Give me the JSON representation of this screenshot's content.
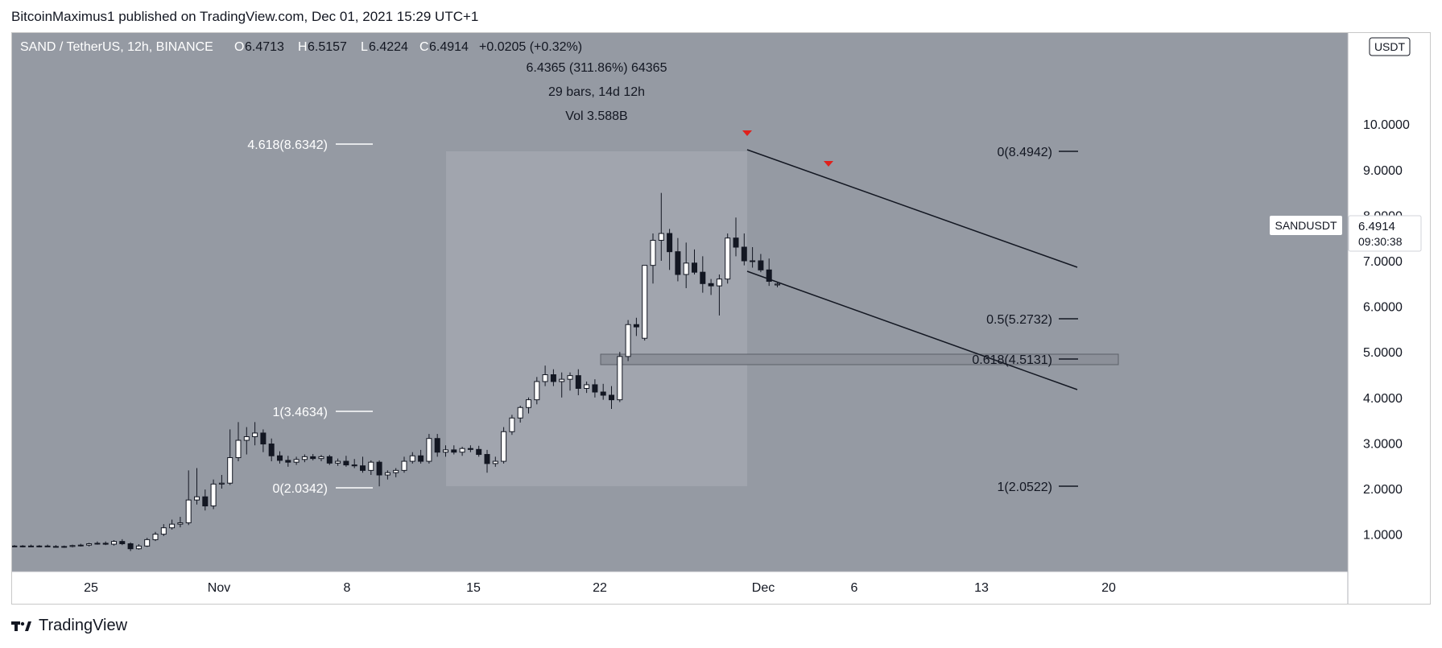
{
  "header": {
    "published_text": "BitcoinMaximus1 published on TradingView.com, Dec 01, 2021 15:29 UTC+1"
  },
  "footer": {
    "brand": "TradingView"
  },
  "legend": {
    "symbol": "SAND / TetherUS, 12h, BINANCE",
    "o_label": "O",
    "o_value": "6.4713",
    "h_label": "H",
    "h_value": "6.5157",
    "l_label": "L",
    "l_value": "6.4224",
    "c_label": "C",
    "c_value": "6.4914",
    "change": "+0.0205 (+0.32%)"
  },
  "measure": {
    "line1": "6.4365 (311.86%) 64365",
    "line2": "29 bars, 14d 12h",
    "line3": "Vol 3.588B"
  },
  "price_axis": {
    "currency": "USDT",
    "ticks": [
      "10.0000",
      "9.0000",
      "8.0000",
      "7.0000",
      "6.0000",
      "5.0000",
      "4.0000",
      "3.0000",
      "2.0000",
      "1.0000"
    ]
  },
  "time_axis": {
    "ticks": [
      "25",
      "Nov",
      "8",
      "15",
      "22",
      "Dec",
      "6",
      "13",
      "20"
    ]
  },
  "symbol_tag": {
    "name": "SANDUSDT",
    "price": "6.4914",
    "countdown": "09:30:38"
  },
  "fib_left": {
    "a": "4.618(8.6342)",
    "b": "1(3.4634)",
    "c": "0(2.0342)"
  },
  "fib_right": {
    "a": "0(8.4942)",
    "b": "0.5(5.2732)",
    "c": "0.618(4.5131)",
    "d": "1(2.0522)"
  },
  "colors": {
    "chart_bg": "#959aa3",
    "highlight_bg": "#a1a5ae",
    "marker": "#e0201b",
    "line": "#131722"
  },
  "chart_data": {
    "type": "candlestick",
    "title": "SAND / TetherUS, 12h, BINANCE",
    "ylabel": "USDT",
    "ylim": [
      0.2,
      10.5
    ],
    "x_ticks": [
      "25",
      "Nov",
      "8",
      "15",
      "22",
      "Dec",
      "6",
      "13",
      "20"
    ],
    "candles": [
      {
        "o": 0.74,
        "h": 0.76,
        "l": 0.72,
        "c": 0.73
      },
      {
        "o": 0.73,
        "h": 0.76,
        "l": 0.71,
        "c": 0.74
      },
      {
        "o": 0.74,
        "h": 0.77,
        "l": 0.72,
        "c": 0.73
      },
      {
        "o": 0.73,
        "h": 0.76,
        "l": 0.71,
        "c": 0.74
      },
      {
        "o": 0.74,
        "h": 0.77,
        "l": 0.72,
        "c": 0.73
      },
      {
        "o": 0.73,
        "h": 0.76,
        "l": 0.71,
        "c": 0.72
      },
      {
        "o": 0.72,
        "h": 0.75,
        "l": 0.7,
        "c": 0.73
      },
      {
        "o": 0.73,
        "h": 0.77,
        "l": 0.71,
        "c": 0.75
      },
      {
        "o": 0.75,
        "h": 0.79,
        "l": 0.73,
        "c": 0.76
      },
      {
        "o": 0.76,
        "h": 0.81,
        "l": 0.73,
        "c": 0.79
      },
      {
        "o": 0.79,
        "h": 0.84,
        "l": 0.77,
        "c": 0.8
      },
      {
        "o": 0.8,
        "h": 0.84,
        "l": 0.76,
        "c": 0.78
      },
      {
        "o": 0.78,
        "h": 0.87,
        "l": 0.75,
        "c": 0.84
      },
      {
        "o": 0.84,
        "h": 0.89,
        "l": 0.76,
        "c": 0.79
      },
      {
        "o": 0.79,
        "h": 0.82,
        "l": 0.63,
        "c": 0.68
      },
      {
        "o": 0.68,
        "h": 0.78,
        "l": 0.66,
        "c": 0.74
      },
      {
        "o": 0.74,
        "h": 0.92,
        "l": 0.72,
        "c": 0.88
      },
      {
        "o": 0.88,
        "h": 1.05,
        "l": 0.85,
        "c": 1.0
      },
      {
        "o": 1.0,
        "h": 1.22,
        "l": 0.96,
        "c": 1.14
      },
      {
        "o": 1.14,
        "h": 1.32,
        "l": 1.1,
        "c": 1.22
      },
      {
        "o": 1.22,
        "h": 1.38,
        "l": 1.15,
        "c": 1.25
      },
      {
        "o": 1.25,
        "h": 2.4,
        "l": 1.2,
        "c": 1.75
      },
      {
        "o": 1.75,
        "h": 2.45,
        "l": 1.65,
        "c": 1.82
      },
      {
        "o": 1.82,
        "h": 1.98,
        "l": 1.52,
        "c": 1.62
      },
      {
        "o": 1.62,
        "h": 2.2,
        "l": 1.55,
        "c": 2.1
      },
      {
        "o": 2.1,
        "h": 2.3,
        "l": 2.0,
        "c": 2.12
      },
      {
        "o": 2.12,
        "h": 3.3,
        "l": 2.08,
        "c": 2.68
      },
      {
        "o": 2.68,
        "h": 3.46,
        "l": 2.6,
        "c": 3.06
      },
      {
        "o": 3.06,
        "h": 3.35,
        "l": 2.75,
        "c": 3.14
      },
      {
        "o": 3.14,
        "h": 3.46,
        "l": 2.95,
        "c": 3.22
      },
      {
        "o": 3.22,
        "h": 3.3,
        "l": 2.8,
        "c": 2.98
      },
      {
        "o": 2.98,
        "h": 3.1,
        "l": 2.6,
        "c": 2.72
      },
      {
        "o": 2.72,
        "h": 2.82,
        "l": 2.55,
        "c": 2.62
      },
      {
        "o": 2.62,
        "h": 2.72,
        "l": 2.48,
        "c": 2.58
      },
      {
        "o": 2.58,
        "h": 2.7,
        "l": 2.52,
        "c": 2.64
      },
      {
        "o": 2.64,
        "h": 2.75,
        "l": 2.58,
        "c": 2.7
      },
      {
        "o": 2.7,
        "h": 2.76,
        "l": 2.62,
        "c": 2.66
      },
      {
        "o": 2.66,
        "h": 2.74,
        "l": 2.6,
        "c": 2.7
      },
      {
        "o": 2.7,
        "h": 2.74,
        "l": 2.52,
        "c": 2.56
      },
      {
        "o": 2.56,
        "h": 2.66,
        "l": 2.5,
        "c": 2.6
      },
      {
        "o": 2.6,
        "h": 2.72,
        "l": 2.48,
        "c": 2.52
      },
      {
        "o": 2.52,
        "h": 2.65,
        "l": 2.45,
        "c": 2.5
      },
      {
        "o": 2.5,
        "h": 2.7,
        "l": 2.35,
        "c": 2.4
      },
      {
        "o": 2.4,
        "h": 2.62,
        "l": 2.3,
        "c": 2.58
      },
      {
        "o": 2.58,
        "h": 2.62,
        "l": 2.05,
        "c": 2.3
      },
      {
        "o": 2.3,
        "h": 2.4,
        "l": 2.2,
        "c": 2.35
      },
      {
        "o": 2.35,
        "h": 2.45,
        "l": 2.25,
        "c": 2.4
      },
      {
        "o": 2.4,
        "h": 2.7,
        "l": 2.35,
        "c": 2.6
      },
      {
        "o": 2.6,
        "h": 2.8,
        "l": 2.55,
        "c": 2.72
      },
      {
        "o": 2.72,
        "h": 2.85,
        "l": 2.55,
        "c": 2.6
      },
      {
        "o": 2.6,
        "h": 3.2,
        "l": 2.55,
        "c": 3.1
      },
      {
        "o": 3.1,
        "h": 3.2,
        "l": 2.7,
        "c": 2.8
      },
      {
        "o": 2.8,
        "h": 2.95,
        "l": 2.7,
        "c": 2.85
      },
      {
        "o": 2.85,
        "h": 2.95,
        "l": 2.75,
        "c": 2.8
      },
      {
        "o": 2.8,
        "h": 2.92,
        "l": 2.72,
        "c": 2.88
      },
      {
        "o": 2.88,
        "h": 2.95,
        "l": 2.8,
        "c": 2.86
      },
      {
        "o": 2.86,
        "h": 2.94,
        "l": 2.7,
        "c": 2.75
      },
      {
        "o": 2.75,
        "h": 2.85,
        "l": 2.35,
        "c": 2.55
      },
      {
        "o": 2.55,
        "h": 2.7,
        "l": 2.48,
        "c": 2.6
      },
      {
        "o": 2.6,
        "h": 3.35,
        "l": 2.55,
        "c": 3.25
      },
      {
        "o": 3.25,
        "h": 3.62,
        "l": 3.18,
        "c": 3.55
      },
      {
        "o": 3.55,
        "h": 3.82,
        "l": 3.45,
        "c": 3.78
      },
      {
        "o": 3.78,
        "h": 4.0,
        "l": 3.65,
        "c": 3.95
      },
      {
        "o": 3.95,
        "h": 4.45,
        "l": 3.85,
        "c": 4.35
      },
      {
        "o": 4.35,
        "h": 4.7,
        "l": 4.25,
        "c": 4.5
      },
      {
        "o": 4.5,
        "h": 4.62,
        "l": 4.25,
        "c": 4.35
      },
      {
        "o": 4.35,
        "h": 4.55,
        "l": 4.0,
        "c": 4.4
      },
      {
        "o": 4.4,
        "h": 4.55,
        "l": 4.15,
        "c": 4.48
      },
      {
        "o": 4.48,
        "h": 4.62,
        "l": 4.05,
        "c": 4.2
      },
      {
        "o": 4.2,
        "h": 4.35,
        "l": 4.1,
        "c": 4.28
      },
      {
        "o": 4.28,
        "h": 4.4,
        "l": 4.0,
        "c": 4.12
      },
      {
        "o": 4.12,
        "h": 4.3,
        "l": 3.95,
        "c": 4.05
      },
      {
        "o": 4.05,
        "h": 4.25,
        "l": 3.75,
        "c": 3.95
      },
      {
        "o": 3.95,
        "h": 5.0,
        "l": 3.9,
        "c": 4.9
      },
      {
        "o": 4.9,
        "h": 5.7,
        "l": 4.8,
        "c": 5.6
      },
      {
        "o": 5.6,
        "h": 5.75,
        "l": 5.35,
        "c": 5.55
      },
      {
        "o": 5.3,
        "h": 6.9,
        "l": 5.25,
        "c": 6.9
      },
      {
        "o": 6.9,
        "h": 7.6,
        "l": 6.5,
        "c": 7.45
      },
      {
        "o": 7.45,
        "h": 8.49,
        "l": 7.0,
        "c": 7.6
      },
      {
        "o": 7.6,
        "h": 7.7,
        "l": 6.8,
        "c": 7.2
      },
      {
        "o": 7.2,
        "h": 7.5,
        "l": 6.55,
        "c": 6.7
      },
      {
        "o": 6.7,
        "h": 7.4,
        "l": 6.4,
        "c": 6.95
      },
      {
        "o": 6.95,
        "h": 7.25,
        "l": 6.7,
        "c": 6.75
      },
      {
        "o": 6.75,
        "h": 7.1,
        "l": 6.3,
        "c": 6.5
      },
      {
        "o": 6.5,
        "h": 6.6,
        "l": 6.25,
        "c": 6.45
      },
      {
        "o": 6.45,
        "h": 6.7,
        "l": 5.8,
        "c": 6.6
      },
      {
        "o": 6.6,
        "h": 7.6,
        "l": 6.5,
        "c": 7.5
      },
      {
        "o": 7.5,
        "h": 7.95,
        "l": 7.1,
        "c": 7.3
      },
      {
        "o": 7.3,
        "h": 7.6,
        "l": 6.9,
        "c": 7.0
      },
      {
        "o": 7.0,
        "h": 7.3,
        "l": 6.85,
        "c": 7.0
      },
      {
        "o": 7.0,
        "h": 7.15,
        "l": 6.75,
        "c": 6.8
      },
      {
        "o": 6.8,
        "h": 7.05,
        "l": 6.45,
        "c": 6.55
      },
      {
        "o": 6.47,
        "h": 6.52,
        "l": 6.42,
        "c": 6.49
      }
    ]
  }
}
